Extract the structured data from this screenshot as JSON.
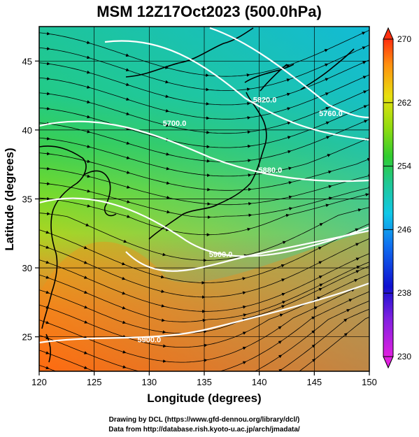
{
  "title": "MSM 12Z17Oct2023 (500.0hPa)",
  "x_axis": {
    "label": "Longitude (degrees)",
    "range": [
      120,
      150
    ],
    "ticks": [
      "120",
      "125",
      "130",
      "135",
      "140",
      "145",
      "150"
    ]
  },
  "y_axis": {
    "label": "Latitude  (degrees)",
    "range": [
      22.5,
      47.5
    ],
    "ticks": [
      "25",
      "30",
      "35",
      "40",
      "45"
    ]
  },
  "colorbar": {
    "range": [
      230,
      270
    ],
    "ticks": [
      "230",
      "238",
      "246",
      "254",
      "262",
      "270"
    ]
  },
  "contours": [
    {
      "label": "5820.0",
      "lon": 140.5,
      "lat": 42.0
    },
    {
      "label": "5760.0",
      "lon": 146.5,
      "lat": 41.0
    },
    {
      "label": "5700.0",
      "lon": 132.3,
      "lat": 40.3
    },
    {
      "label": "5880.0",
      "lon": 141.0,
      "lat": 36.9
    },
    {
      "label": "5900.0",
      "lon": 136.5,
      "lat": 30.8
    },
    {
      "label": "5900.0",
      "lon": 130.0,
      "lat": 24.6
    }
  ],
  "credits": {
    "line1": "Drawing by DCL (https://www.gfd-dennou.org/library/dcl/)",
    "line2": "Data from http://database.rish.kyoto-u.ac.jp/arch/jmadata/"
  }
}
